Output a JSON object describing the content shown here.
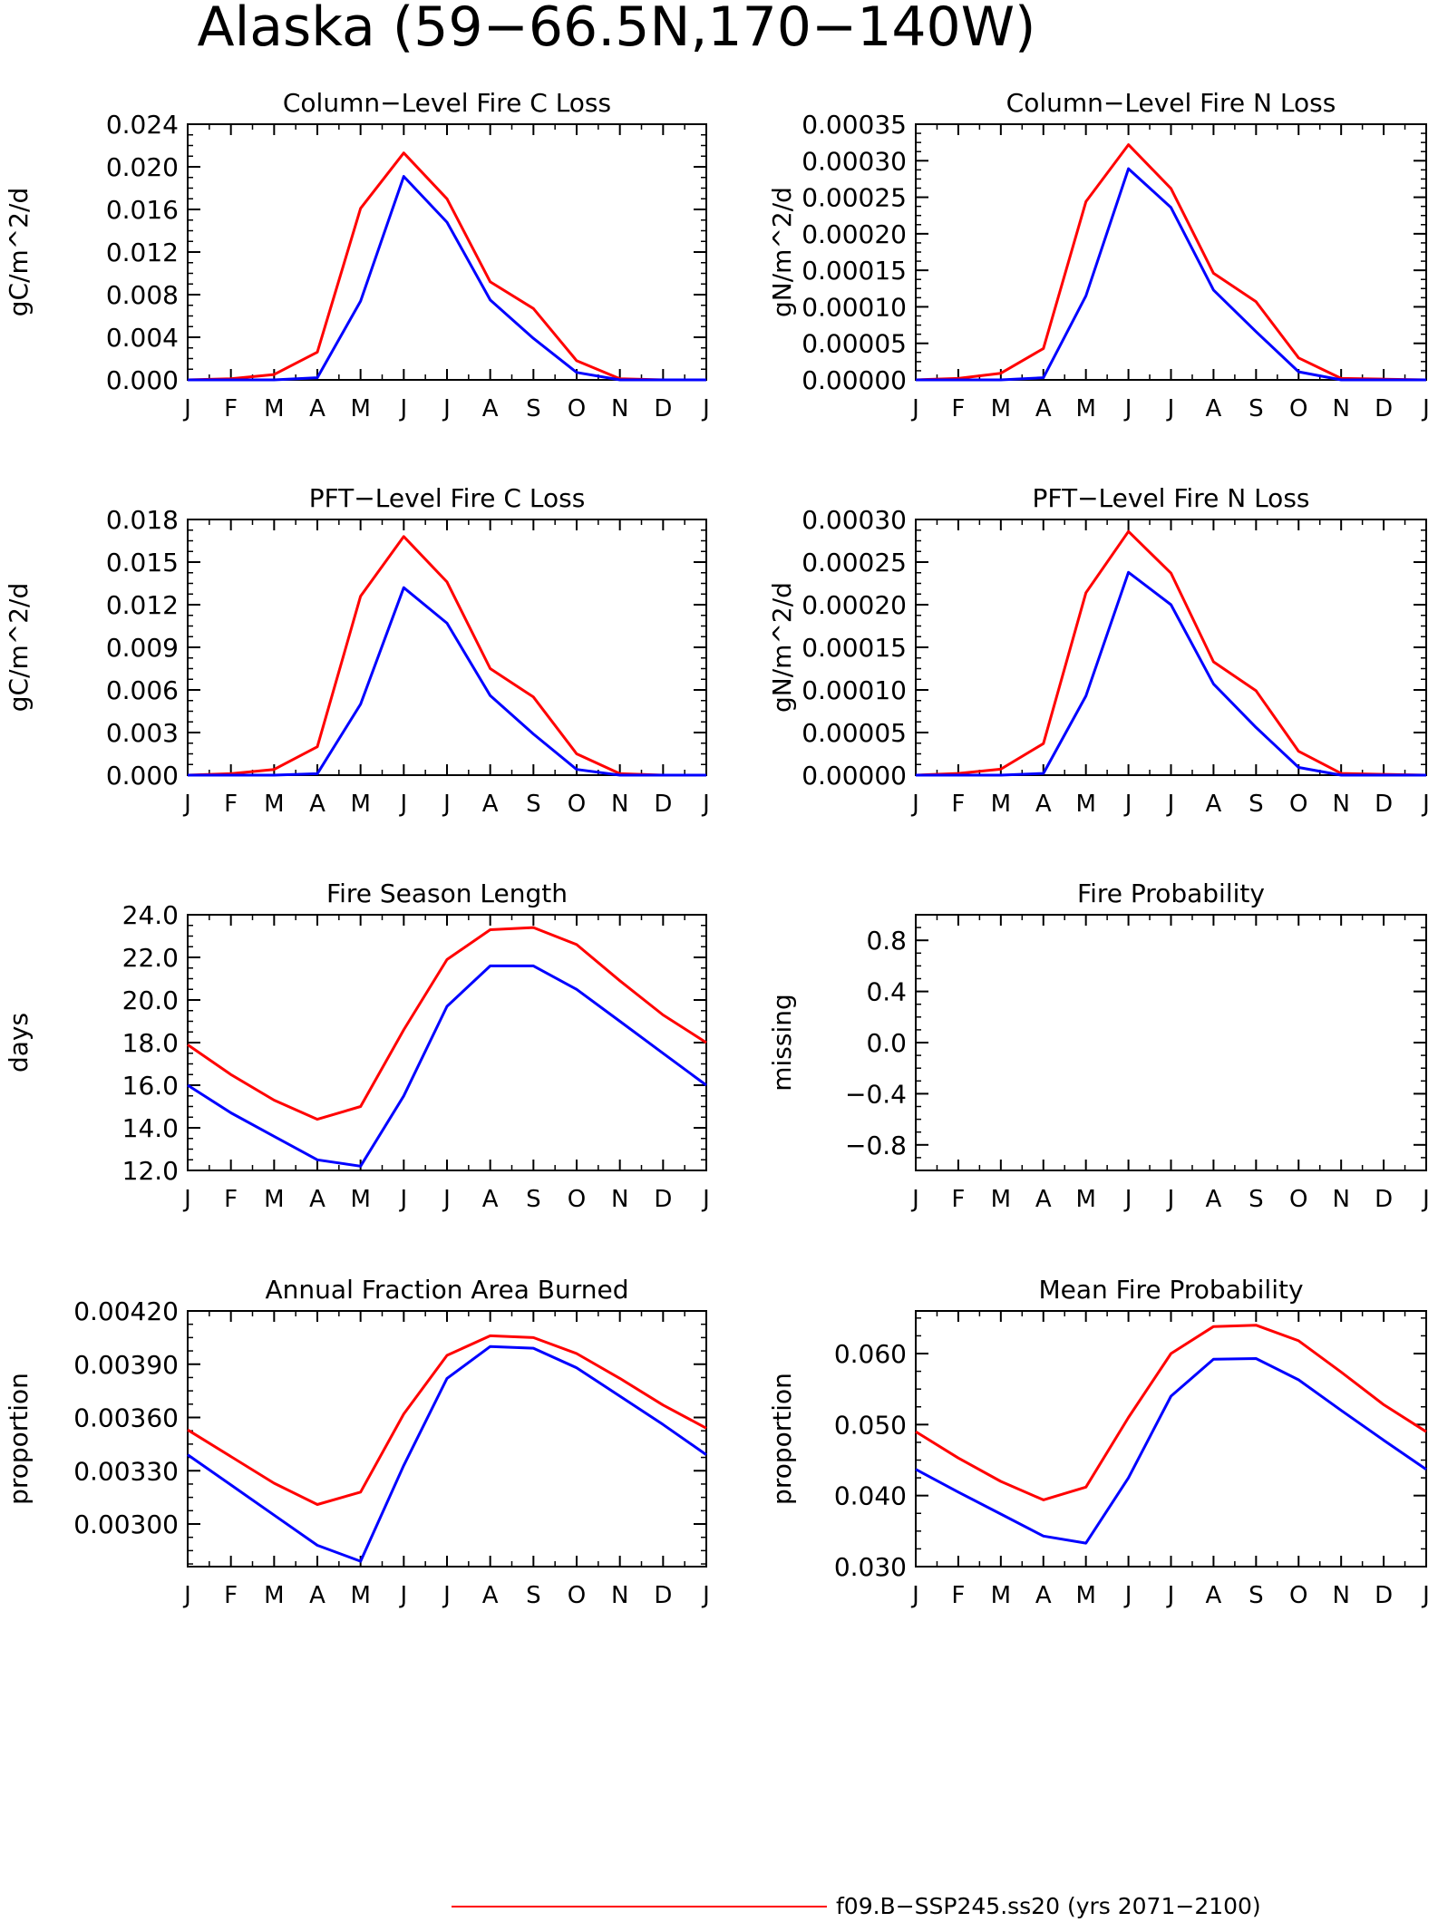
{
  "page_title": "Alaska (59−66.5N,170−140W)",
  "colors": {
    "red": "#ff0000",
    "blue": "#0000ff",
    "axis": "#000000"
  },
  "legend": {
    "red_label": "f09.B−SSP245.ss20 (yrs 2071−2100)"
  },
  "chart_data": [
    {
      "type": "line",
      "title": "Column−Level Fire C Loss",
      "ylabel": "gC/m^2/d",
      "categories": [
        "J",
        "F",
        "M",
        "A",
        "M",
        "J",
        "J",
        "A",
        "S",
        "O",
        "N",
        "D",
        "J"
      ],
      "ylim": [
        0,
        0.024
      ],
      "yticks": [
        0,
        0.004,
        0.008,
        0.012,
        0.016,
        0.02,
        0.024
      ],
      "yticklabels": [
        "0.000",
        "0.004",
        "0.008",
        "0.012",
        "0.016",
        "0.020",
        "0.024"
      ],
      "series": [
        {
          "color": "#ff0000",
          "values": [
            0.0,
            0.0001,
            0.0005,
            0.0026,
            0.0161,
            0.0213,
            0.017,
            0.0092,
            0.0067,
            0.0018,
            0.0001,
            0.0,
            0.0
          ]
        },
        {
          "color": "#0000ff",
          "values": [
            0.0,
            0.0,
            0.0,
            0.0002,
            0.0074,
            0.0191,
            0.0148,
            0.0075,
            0.0039,
            0.0007,
            0.0,
            0.0,
            0.0
          ]
        }
      ]
    },
    {
      "type": "line",
      "title": "Column−Level Fire N Loss",
      "ylabel": "gN/m^2/d",
      "categories": [
        "J",
        "F",
        "M",
        "A",
        "M",
        "J",
        "J",
        "A",
        "S",
        "O",
        "N",
        "D",
        "J"
      ],
      "ylim": [
        0,
        0.00035
      ],
      "yticks": [
        0,
        5e-05,
        0.0001,
        0.00015,
        0.0002,
        0.00025,
        0.0003,
        0.00035
      ],
      "yticklabels": [
        "0.00000",
        "0.00005",
        "0.00010",
        "0.00015",
        "0.00020",
        "0.00025",
        "0.00030",
        "0.00035"
      ],
      "series": [
        {
          "color": "#ff0000",
          "values": [
            0.0,
            2e-06,
            9e-06,
            4.3e-05,
            0.000244,
            0.000322,
            0.000262,
            0.000146,
            0.000107,
            3e-05,
            2e-06,
            1e-06,
            0.0
          ]
        },
        {
          "color": "#0000ff",
          "values": [
            0.0,
            0.0,
            0.0,
            3e-06,
            0.000115,
            0.000289,
            0.000236,
            0.000123,
            6.6e-05,
            1.1e-05,
            0.0,
            0.0,
            0.0
          ]
        }
      ]
    },
    {
      "type": "line",
      "title": "PFT−Level Fire C Loss",
      "ylabel": "gC/m^2/d",
      "categories": [
        "J",
        "F",
        "M",
        "A",
        "M",
        "J",
        "J",
        "A",
        "S",
        "O",
        "N",
        "D",
        "J"
      ],
      "ylim": [
        0,
        0.018
      ],
      "yticks": [
        0,
        0.003,
        0.006,
        0.009,
        0.012,
        0.015,
        0.018
      ],
      "yticklabels": [
        "0.000",
        "0.003",
        "0.006",
        "0.009",
        "0.012",
        "0.015",
        "0.018"
      ],
      "series": [
        {
          "color": "#ff0000",
          "values": [
            0.0,
            0.0001,
            0.0004,
            0.002,
            0.0126,
            0.0168,
            0.0136,
            0.0075,
            0.0055,
            0.0015,
            0.0001,
            0.0,
            0.0
          ]
        },
        {
          "color": "#0000ff",
          "values": [
            0.0,
            0.0,
            0.0,
            0.0001,
            0.005,
            0.0132,
            0.0107,
            0.0056,
            0.0029,
            0.0004,
            0.0,
            0.0,
            0.0
          ]
        }
      ]
    },
    {
      "type": "line",
      "title": "PFT−Level Fire N Loss",
      "ylabel": "gN/m^2/d",
      "categories": [
        "J",
        "F",
        "M",
        "A",
        "M",
        "J",
        "J",
        "A",
        "S",
        "O",
        "N",
        "D",
        "J"
      ],
      "ylim": [
        0,
        0.0003
      ],
      "yticks": [
        0,
        5e-05,
        0.0001,
        0.00015,
        0.0002,
        0.00025,
        0.0003
      ],
      "yticklabels": [
        "0.00000",
        "0.00005",
        "0.00010",
        "0.00015",
        "0.00020",
        "0.00025",
        "0.00030"
      ],
      "series": [
        {
          "color": "#ff0000",
          "values": [
            0.0,
            2e-06,
            7e-06,
            3.7e-05,
            0.000214,
            0.000286,
            0.000237,
            0.000133,
            9.9e-05,
            2.8e-05,
            2e-06,
            1e-06,
            0.0
          ]
        },
        {
          "color": "#0000ff",
          "values": [
            0.0,
            0.0,
            0.0,
            2e-06,
            9.3e-05,
            0.000238,
            0.0002,
            0.000107,
            5.6e-05,
            9e-06,
            0.0,
            0.0,
            0.0
          ]
        }
      ]
    },
    {
      "type": "line",
      "title": "Fire Season Length",
      "ylabel": "days",
      "categories": [
        "J",
        "F",
        "M",
        "A",
        "M",
        "J",
        "J",
        "A",
        "S",
        "O",
        "N",
        "D",
        "J"
      ],
      "ylim": [
        12,
        24
      ],
      "yticks": [
        12,
        14,
        16,
        18,
        20,
        22,
        24
      ],
      "yticklabels": [
        "12.0",
        "14.0",
        "16.0",
        "18.0",
        "20.0",
        "22.0",
        "24.0"
      ],
      "series": [
        {
          "color": "#ff0000",
          "values": [
            17.9,
            16.5,
            15.3,
            14.4,
            15.0,
            18.6,
            21.9,
            23.3,
            23.4,
            22.6,
            20.9,
            19.3,
            18.0
          ]
        },
        {
          "color": "#0000ff",
          "values": [
            16.0,
            14.7,
            13.6,
            12.5,
            12.2,
            15.5,
            19.7,
            21.6,
            21.6,
            20.5,
            19.0,
            17.5,
            16.0
          ]
        }
      ]
    },
    {
      "type": "line",
      "title": "Fire Probability",
      "ylabel": "missing",
      "categories": [
        "J",
        "F",
        "M",
        "A",
        "M",
        "J",
        "J",
        "A",
        "S",
        "O",
        "N",
        "D",
        "J"
      ],
      "ylim": [
        -1.0,
        1.0
      ],
      "yticks": [
        -0.8,
        -0.4,
        0.0,
        0.4,
        0.8
      ],
      "yticklabels": [
        "−0.8",
        "−0.4",
        "0.0",
        "0.4",
        "0.8"
      ],
      "series": []
    },
    {
      "type": "line",
      "title": "Annual Fraction Area Burned",
      "ylabel": "proportion",
      "categories": [
        "J",
        "F",
        "M",
        "A",
        "M",
        "J",
        "J",
        "A",
        "S",
        "O",
        "N",
        "D",
        "J"
      ],
      "ylim": [
        0.00276,
        0.0042
      ],
      "yticks": [
        0.003,
        0.0033,
        0.0036,
        0.0039,
        0.0042
      ],
      "yticklabels": [
        "0.00300",
        "0.00330",
        "0.00360",
        "0.00390",
        "0.00420"
      ],
      "series": [
        {
          "color": "#ff0000",
          "values": [
            0.00353,
            0.00338,
            0.00323,
            0.00311,
            0.00318,
            0.00362,
            0.00395,
            0.00406,
            0.00405,
            0.00396,
            0.00382,
            0.00367,
            0.00354
          ]
        },
        {
          "color": "#0000ff",
          "values": [
            0.00339,
            0.00322,
            0.00305,
            0.00288,
            0.00279,
            0.00333,
            0.00382,
            0.004,
            0.00399,
            0.00388,
            0.00372,
            0.00356,
            0.00339
          ]
        }
      ]
    },
    {
      "type": "line",
      "title": "Mean Fire Probability",
      "ylabel": "proportion",
      "categories": [
        "J",
        "F",
        "M",
        "A",
        "M",
        "J",
        "J",
        "A",
        "S",
        "O",
        "N",
        "D",
        "J"
      ],
      "ylim": [
        0.03,
        0.066
      ],
      "yticks": [
        0.03,
        0.04,
        0.05,
        0.06
      ],
      "yticklabels": [
        "0.030",
        "0.040",
        "0.050",
        "0.060"
      ],
      "series": [
        {
          "color": "#ff0000",
          "values": [
            0.049,
            0.0453,
            0.042,
            0.0394,
            0.0412,
            0.051,
            0.06,
            0.0638,
            0.064,
            0.0618,
            0.0574,
            0.0528,
            0.049
          ]
        },
        {
          "color": "#0000ff",
          "values": [
            0.0437,
            0.0405,
            0.0374,
            0.0343,
            0.0333,
            0.0425,
            0.054,
            0.0592,
            0.0593,
            0.0563,
            0.052,
            0.0478,
            0.0437
          ]
        }
      ]
    }
  ]
}
